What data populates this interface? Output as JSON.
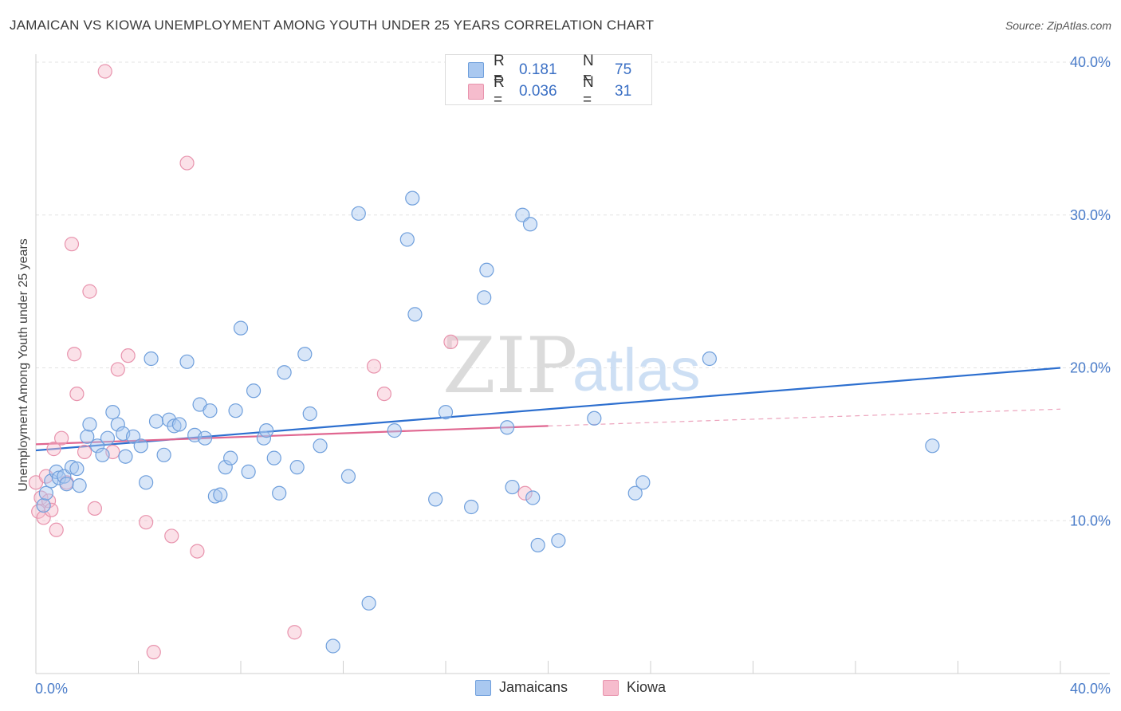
{
  "title": "JAMAICAN VS KIOWA UNEMPLOYMENT AMONG YOUTH UNDER 25 YEARS CORRELATION CHART",
  "source": "Source: ZipAtlas.com",
  "watermark": {
    "zip": "ZIP",
    "atlas": "atlas"
  },
  "legend": {
    "jamaicans": {
      "r_label": "R =",
      "r_value": "0.181",
      "n_label": "N =",
      "n_value": "75"
    },
    "kiowa": {
      "r_label": "R =",
      "r_value": "0.036",
      "n_label": "N =",
      "n_value": "31"
    }
  },
  "colors": {
    "jamaicans_fill": "#a9c8f0",
    "jamaicans_stroke": "#6f9fdc",
    "jamaicans_line": "#2d6fcf",
    "kiowa_fill": "#f6bccd",
    "kiowa_stroke": "#e893ad",
    "kiowa_line": "#e06690",
    "tick_text": "#4a7cc9",
    "grid": "#e3e3e3"
  },
  "chart_data": {
    "type": "scatter",
    "title": "JAMAICAN VS KIOWA UNEMPLOYMENT AMONG YOUTH UNDER 25 YEARS CORRELATION CHART",
    "xlabel": "",
    "ylabel": "Unemployment Among Youth under 25 years",
    "xlim": [
      0,
      40
    ],
    "ylim": [
      0,
      40
    ],
    "x_ticks": [
      "0.0%",
      "40.0%"
    ],
    "y_ticks": [
      "10.0%",
      "20.0%",
      "30.0%",
      "40.0%"
    ],
    "y_tick_values": [
      10,
      20,
      30,
      40
    ],
    "legend_position": "bottom",
    "series": [
      {
        "name": "Jamaicans",
        "points": [
          [
            0.3,
            11.0
          ],
          [
            0.4,
            11.8
          ],
          [
            0.6,
            12.6
          ],
          [
            0.8,
            13.2
          ],
          [
            0.9,
            12.8
          ],
          [
            1.1,
            12.9
          ],
          [
            1.2,
            12.4
          ],
          [
            1.4,
            13.5
          ],
          [
            1.6,
            13.4
          ],
          [
            1.7,
            12.3
          ],
          [
            2.0,
            15.5
          ],
          [
            2.1,
            16.3
          ],
          [
            2.4,
            14.9
          ],
          [
            2.6,
            14.3
          ],
          [
            2.8,
            15.4
          ],
          [
            3.0,
            17.1
          ],
          [
            3.2,
            16.3
          ],
          [
            3.4,
            15.7
          ],
          [
            3.5,
            14.2
          ],
          [
            3.8,
            15.5
          ],
          [
            4.1,
            14.9
          ],
          [
            4.3,
            12.5
          ],
          [
            4.5,
            20.6
          ],
          [
            4.7,
            16.5
          ],
          [
            5.0,
            14.3
          ],
          [
            5.2,
            16.6
          ],
          [
            5.4,
            16.2
          ],
          [
            5.6,
            16.3
          ],
          [
            5.9,
            20.4
          ],
          [
            6.2,
            15.6
          ],
          [
            6.4,
            17.6
          ],
          [
            6.6,
            15.4
          ],
          [
            6.8,
            17.2
          ],
          [
            7.0,
            11.6
          ],
          [
            7.2,
            11.7
          ],
          [
            7.4,
            13.5
          ],
          [
            7.6,
            14.1
          ],
          [
            7.8,
            17.2
          ],
          [
            8.0,
            22.6
          ],
          [
            8.3,
            13.2
          ],
          [
            8.5,
            18.5
          ],
          [
            8.9,
            15.4
          ],
          [
            9.0,
            15.9
          ],
          [
            9.3,
            14.1
          ],
          [
            9.5,
            11.8
          ],
          [
            9.7,
            19.7
          ],
          [
            10.2,
            13.5
          ],
          [
            10.5,
            20.9
          ],
          [
            10.7,
            17.0
          ],
          [
            11.1,
            14.9
          ],
          [
            11.6,
            1.8
          ],
          [
            12.2,
            12.9
          ],
          [
            12.6,
            30.1
          ],
          [
            13.0,
            4.6
          ],
          [
            14.0,
            15.9
          ],
          [
            14.5,
            28.4
          ],
          [
            14.7,
            31.1
          ],
          [
            14.8,
            23.5
          ],
          [
            15.6,
            11.4
          ],
          [
            16.0,
            17.1
          ],
          [
            17.0,
            10.9
          ],
          [
            17.5,
            24.6
          ],
          [
            17.6,
            26.4
          ],
          [
            18.4,
            16.1
          ],
          [
            18.6,
            12.2
          ],
          [
            19.0,
            30.0
          ],
          [
            19.3,
            29.4
          ],
          [
            19.4,
            11.5
          ],
          [
            19.6,
            8.4
          ],
          [
            20.4,
            8.7
          ],
          [
            21.8,
            16.7
          ],
          [
            23.4,
            11.8
          ],
          [
            23.7,
            12.5
          ],
          [
            26.3,
            20.6
          ],
          [
            35.0,
            14.9
          ]
        ],
        "trend": {
          "x": [
            0,
            40
          ],
          "y": [
            14.6,
            20.0
          ]
        }
      },
      {
        "name": "Kiowa",
        "points": [
          [
            0.0,
            12.5
          ],
          [
            0.1,
            10.6
          ],
          [
            0.2,
            11.5
          ],
          [
            0.3,
            10.2
          ],
          [
            0.5,
            11.3
          ],
          [
            0.6,
            10.7
          ],
          [
            0.7,
            14.7
          ],
          [
            0.8,
            9.4
          ],
          [
            1.0,
            15.4
          ],
          [
            1.2,
            12.5
          ],
          [
            1.4,
            28.1
          ],
          [
            1.5,
            20.9
          ],
          [
            1.6,
            18.3
          ],
          [
            1.9,
            14.5
          ],
          [
            2.1,
            25.0
          ],
          [
            2.3,
            10.8
          ],
          [
            2.7,
            39.4
          ],
          [
            3.0,
            14.5
          ],
          [
            3.2,
            19.9
          ],
          [
            3.6,
            20.8
          ],
          [
            4.3,
            9.9
          ],
          [
            4.6,
            1.4
          ],
          [
            5.3,
            9.0
          ],
          [
            5.9,
            33.4
          ],
          [
            6.3,
            8.0
          ],
          [
            10.1,
            2.7
          ],
          [
            13.2,
            20.1
          ],
          [
            13.6,
            18.3
          ],
          [
            16.2,
            21.7
          ],
          [
            19.1,
            11.8
          ],
          [
            0.4,
            12.9
          ]
        ],
        "trend": {
          "x": [
            0,
            20
          ],
          "y": [
            15.0,
            16.2
          ]
        },
        "trend_dashed": {
          "x": [
            20,
            40
          ],
          "y": [
            16.2,
            17.3
          ]
        }
      }
    ]
  },
  "bottom_legend": {
    "jamaicans": "Jamaicans",
    "kiowa": "Kiowa"
  }
}
